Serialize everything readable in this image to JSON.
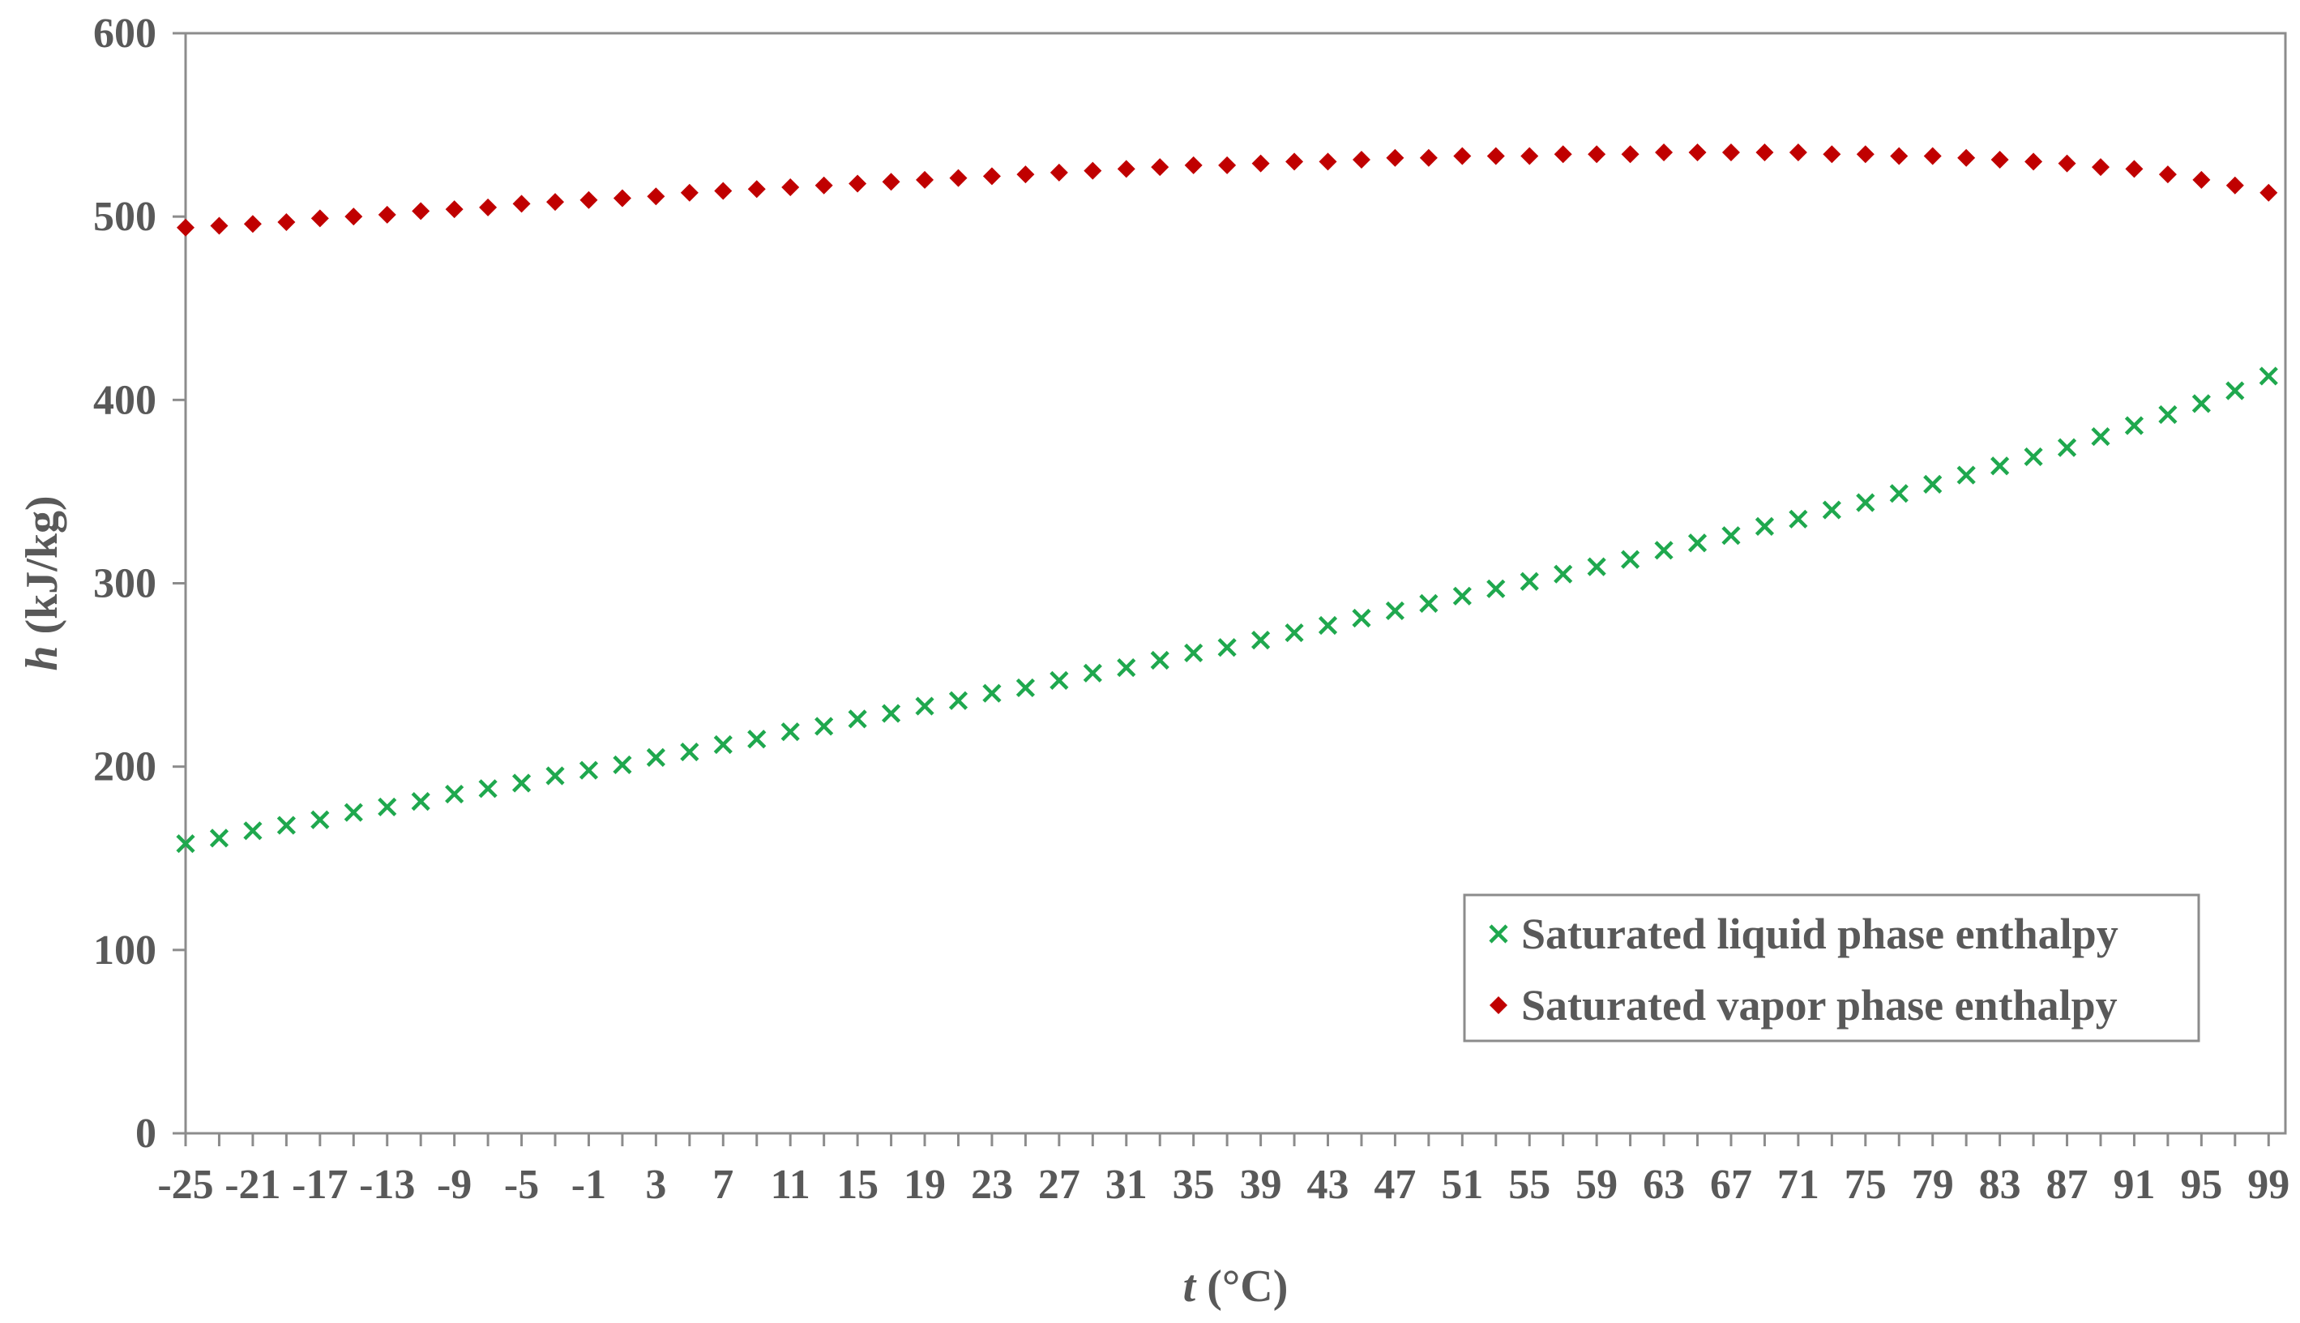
{
  "chart_data": {
    "type": "scatter",
    "title": "",
    "xlabel": {
      "symbol": "t",
      "unit": "(°C)"
    },
    "ylabel": {
      "symbol": "h",
      "unit": "(kJ/kg)"
    },
    "xlim": [
      -25,
      100
    ],
    "ylim": [
      0,
      600
    ],
    "yticks": [
      0,
      100,
      200,
      300,
      400,
      500,
      600
    ],
    "xtick_labels": [
      "-25",
      "-21",
      "-17",
      "-13",
      "-9",
      "-5",
      "-1",
      "3",
      "7",
      "11",
      "15",
      "19",
      "23",
      "27",
      "31",
      "35",
      "39",
      "43",
      "47",
      "51",
      "55",
      "59",
      "63",
      "67",
      "71",
      "75",
      "79",
      "83",
      "87",
      "91",
      "95",
      "99"
    ],
    "grid": false,
    "legend_position": "bottom-right",
    "x": [
      -25,
      -23,
      -21,
      -19,
      -17,
      -15,
      -13,
      -11,
      -9,
      -7,
      -5,
      -3,
      -1,
      1,
      3,
      5,
      7,
      9,
      11,
      13,
      15,
      17,
      19,
      21,
      23,
      25,
      27,
      29,
      31,
      33,
      35,
      37,
      39,
      41,
      43,
      45,
      47,
      49,
      51,
      53,
      55,
      57,
      59,
      61,
      63,
      65,
      67,
      69,
      71,
      73,
      75,
      77,
      79,
      81,
      83,
      85,
      87,
      89,
      91,
      93,
      95,
      97,
      99
    ],
    "series": [
      {
        "name": "Saturated liquid phase enthalpy",
        "marker": "x",
        "color": "#1fa84e",
        "values": [
          158,
          161,
          165,
          168,
          171,
          175,
          178,
          181,
          185,
          188,
          191,
          195,
          198,
          201,
          205,
          208,
          212,
          215,
          219,
          222,
          226,
          229,
          233,
          236,
          240,
          243,
          247,
          251,
          254,
          258,
          262,
          265,
          269,
          273,
          277,
          281,
          285,
          289,
          293,
          297,
          301,
          305,
          309,
          313,
          318,
          322,
          326,
          331,
          335,
          340,
          344,
          349,
          354,
          359,
          364,
          369,
          374,
          380,
          386,
          392,
          398,
          405,
          413
        ]
      },
      {
        "name": "Saturated vapor phase enthalpy",
        "marker": "diamond",
        "color": "#c00000",
        "values": [
          494,
          495,
          496,
          497,
          499,
          500,
          501,
          503,
          504,
          505,
          507,
          508,
          509,
          510,
          511,
          513,
          514,
          515,
          516,
          517,
          518,
          519,
          520,
          521,
          522,
          523,
          524,
          525,
          526,
          527,
          528,
          528,
          529,
          530,
          530,
          531,
          532,
          532,
          533,
          533,
          533,
          534,
          534,
          534,
          535,
          535,
          535,
          535,
          535,
          534,
          534,
          533,
          533,
          532,
          531,
          530,
          529,
          527,
          526,
          523,
          520,
          517,
          513
        ]
      }
    ]
  }
}
